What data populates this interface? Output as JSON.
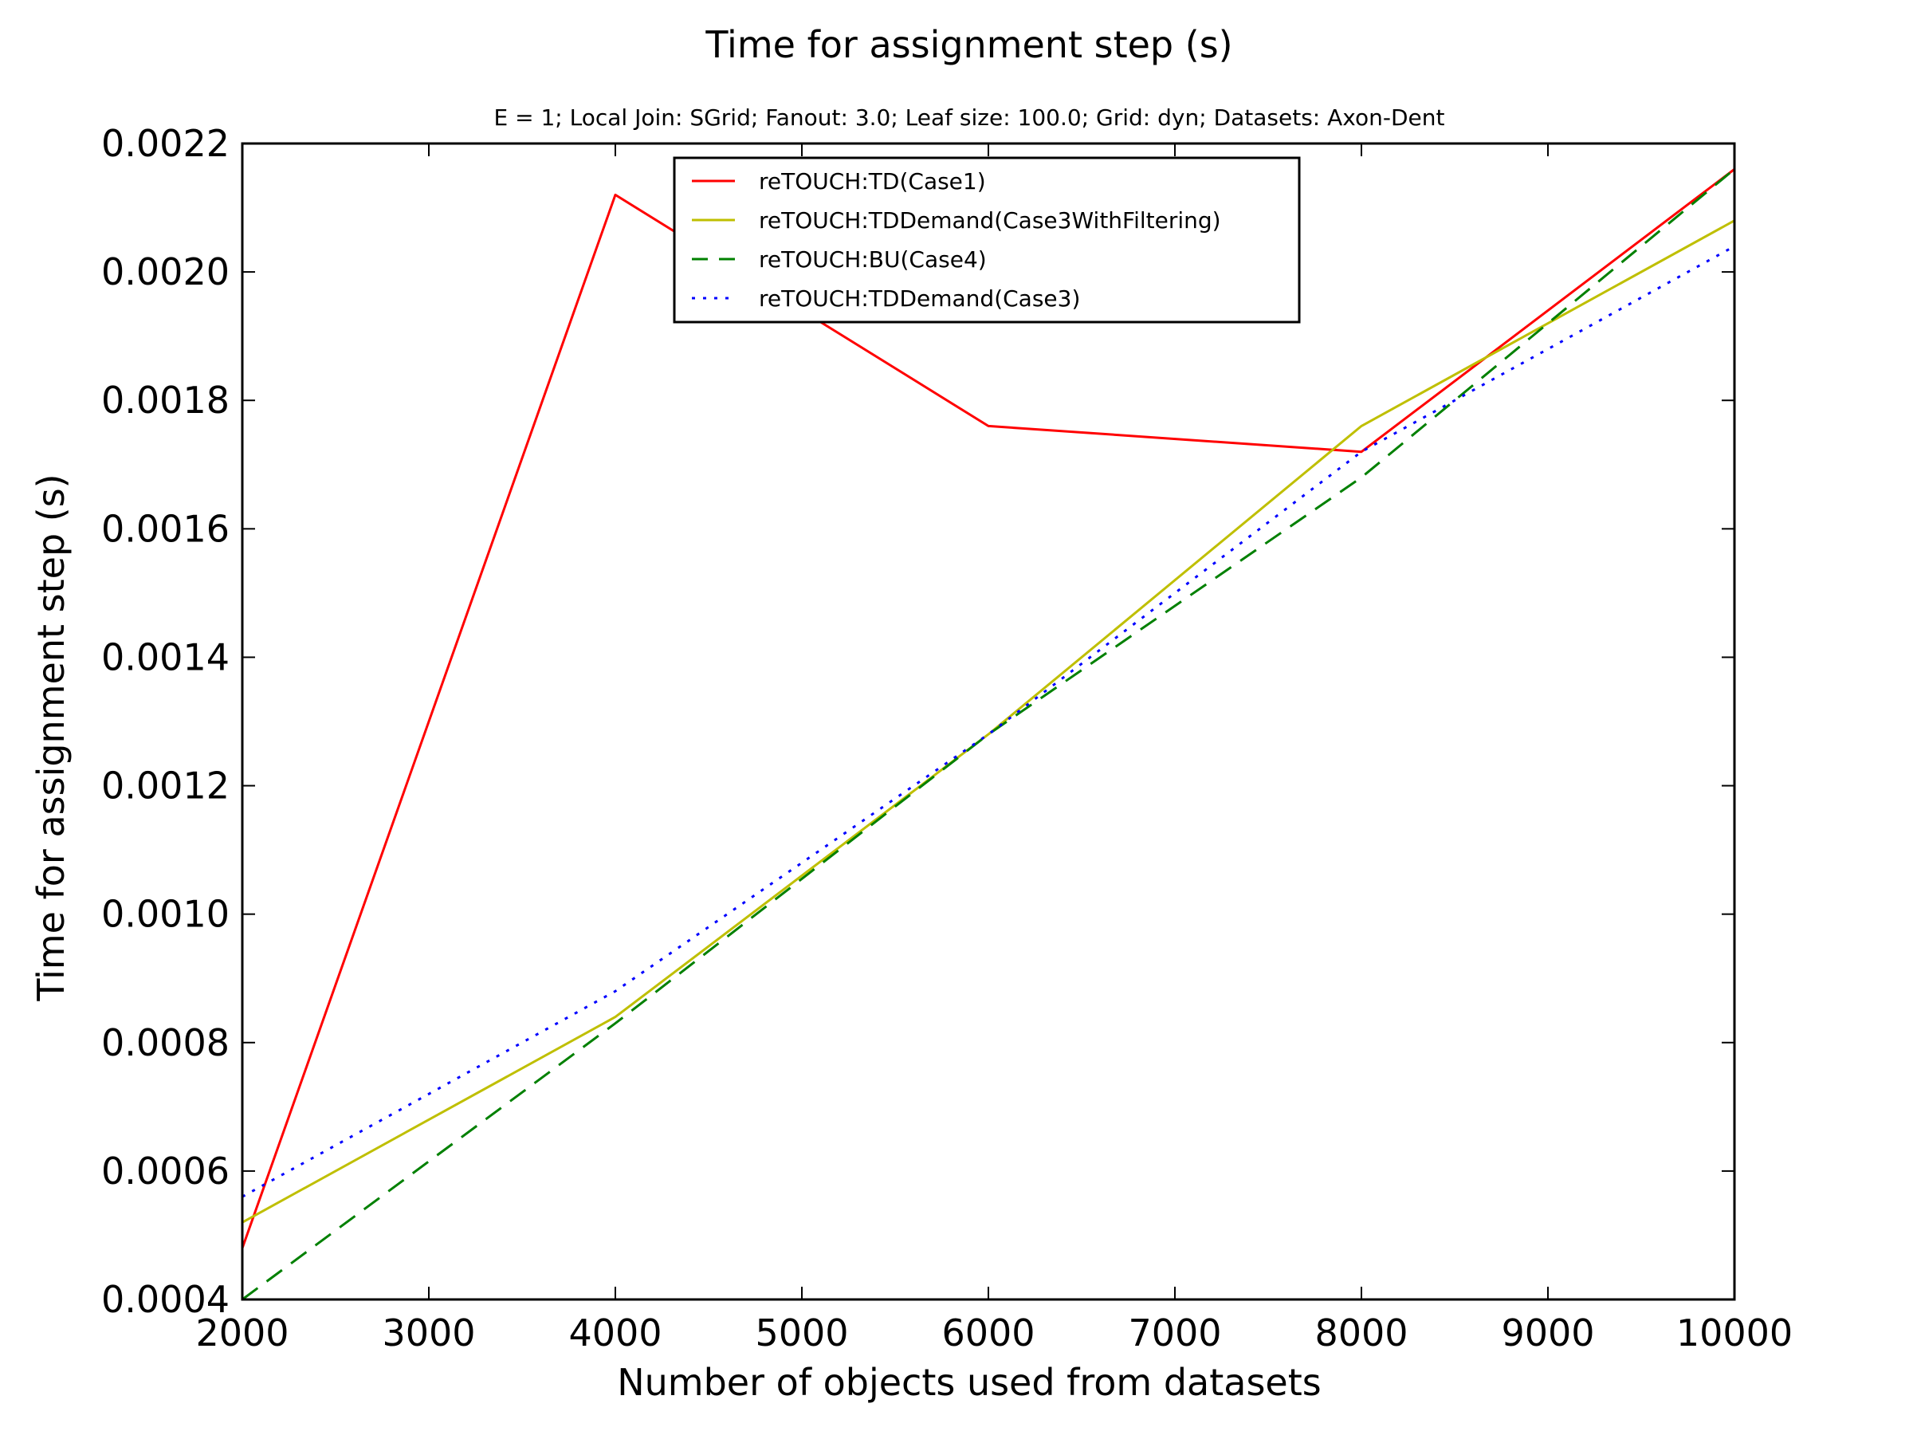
{
  "chart_data": {
    "type": "line",
    "title": "Time for assignment step (s)",
    "subtitle": "E = 1; Local Join: SGrid; Fanout: 3.0; Leaf size: 100.0; Grid: dyn; Datasets: Axon-Dent",
    "xlabel": "Number of objects used from datasets",
    "ylabel": "Time for assignment step (s)",
    "xlim": [
      2000,
      10000
    ],
    "ylim": [
      0.0004,
      0.0022
    ],
    "xticks": [
      2000,
      3000,
      4000,
      5000,
      6000,
      7000,
      8000,
      9000,
      10000
    ],
    "xtick_labels": [
      "2000",
      "3000",
      "4000",
      "5000",
      "6000",
      "7000",
      "8000",
      "9000",
      "10000"
    ],
    "yticks": [
      0.0004,
      0.0006,
      0.0008,
      0.001,
      0.0012,
      0.0014,
      0.0016,
      0.0018,
      0.002,
      0.0022
    ],
    "ytick_labels": [
      "0.0004",
      "0.0006",
      "0.0008",
      "0.0010",
      "0.0012",
      "0.0014",
      "0.0016",
      "0.0018",
      "0.0020",
      "0.0022"
    ],
    "grid": false,
    "legend_position": "top-center",
    "x": [
      2000,
      4000,
      6000,
      8000,
      10000
    ],
    "series": [
      {
        "name": "reTOUCH:TD(Case1)",
        "color": "#ff0000",
        "style": "solid",
        "values": [
          0.00048,
          0.00212,
          0.00176,
          0.00172,
          0.00216
        ]
      },
      {
        "name": "reTOUCH:TDDemand(Case3WithFiltering)",
        "color": "#bfbf00",
        "style": "solid",
        "values": [
          0.00052,
          0.00084,
          0.00128,
          0.00176,
          0.00208
        ]
      },
      {
        "name": "reTOUCH:BU(Case4)",
        "color": "#008000",
        "style": "dashed",
        "values": [
          0.0004,
          0.00083,
          0.00128,
          0.00168,
          0.00216
        ]
      },
      {
        "name": "reTOUCH:TDDemand(Case3)",
        "color": "#0000ff",
        "style": "dotted",
        "values": [
          0.00056,
          0.00088,
          0.00128,
          0.00172,
          0.00204
        ]
      }
    ]
  }
}
